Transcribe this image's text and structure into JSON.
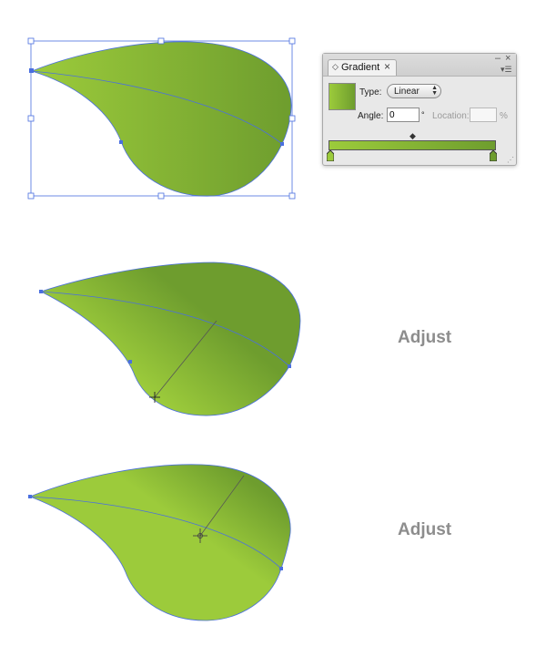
{
  "gradient_panel": {
    "tab_label": "Gradient",
    "type_label": "Type:",
    "type_value": "Linear",
    "angle_label": "Angle:",
    "angle_value": "0",
    "degree_symbol": "°",
    "location_label": "Location:",
    "location_value": "",
    "percent_symbol": "%",
    "colors": {
      "gradient_start": "#9ccb3b",
      "gradient_end": "#6e9d2e"
    }
  },
  "steps": [
    {
      "adjust_label": "Adjust"
    },
    {
      "adjust_label": "Adjust"
    }
  ],
  "colors": {
    "leaf_light": "#9ccb3b",
    "leaf_dark": "#6e9d2e",
    "selection_blue": "#4a6fe0",
    "label_gray": "#8d8d8d"
  }
}
